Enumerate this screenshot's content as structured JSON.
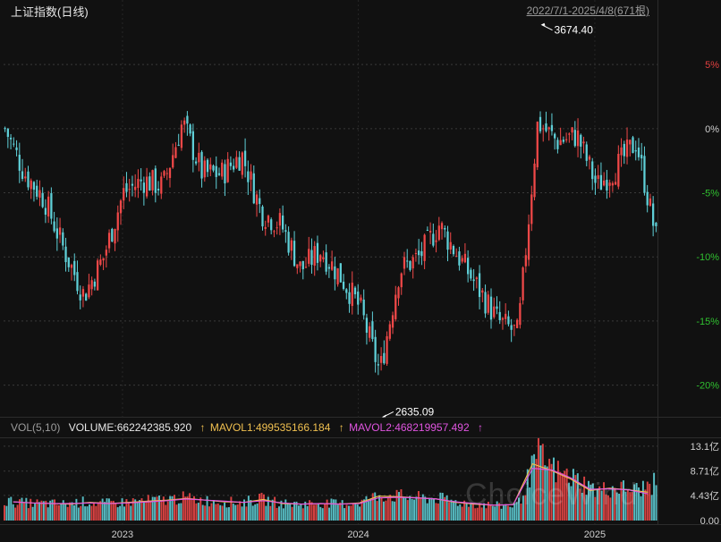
{
  "header": {
    "title": "上证指数(日线)",
    "range": "2022/7/1-2025/4/8(671根)"
  },
  "volume_header": {
    "indicator": "VOL(5,10)",
    "volume": "VOLUME:662242385.920",
    "mavol1": "MAVOL1:499535166.184",
    "mavol2": "MAVOL2:468219957.492",
    "arrow": "↑",
    "colors": {
      "volume": "#e8e8e8",
      "mavol1": "#f0c050",
      "mavol2": "#e055e0"
    }
  },
  "watermark": "ChoiceWind",
  "colors": {
    "background": "#111111",
    "up": "#f04848",
    "down": "#5fd0d8",
    "grid": "#3a3a3a",
    "axis_text": "#cfcfcf",
    "pos_pct": "#e04040",
    "neg_pct": "#30c030"
  },
  "chart_data": [
    {
      "type": "line",
      "subtype": "candlestick",
      "x_axis": {
        "labels": [
          "2023",
          "2024",
          "2025"
        ]
      },
      "y_axis": {
        "unit": "percent change",
        "ticks": [
          5,
          0,
          -5,
          -10,
          -15,
          -20
        ],
        "tick_labels": [
          "5%",
          "0%",
          "-5%",
          "-10%",
          "-15%",
          "-20%"
        ],
        "range": [
          -22.4,
          8.5
        ]
      },
      "annotations": [
        {
          "label": "3674.40",
          "type": "high",
          "date": "2024-10-08",
          "pct": 8.1
        },
        {
          "label": "2635.09",
          "type": "low",
          "date": "2024-02-05",
          "pct": -22.5
        }
      ],
      "x": [
        "2022-07",
        "2022-08",
        "2022-09",
        "2022-10",
        "2022-11",
        "2022-12",
        "2023-01",
        "2023-02",
        "2023-03",
        "2023-04",
        "2023-05",
        "2023-06",
        "2023-07",
        "2023-08",
        "2023-09",
        "2023-10",
        "2023-11",
        "2023-12",
        "2024-01",
        "2024-02",
        "2024-03",
        "2024-04",
        "2024-05",
        "2024-06",
        "2024-07",
        "2024-08",
        "2024-09",
        "2024-10",
        "2024-11",
        "2024-12",
        "2025-01",
        "2025-02",
        "2025-03",
        "2025-04"
      ],
      "series": [
        {
          "values": [
            0.0,
            -3.5,
            -5.5,
            -9.5,
            -13.0,
            -10.0,
            -5.0,
            -4.0,
            -4.5,
            0.5,
            -3.5,
            -3.5,
            -2.0,
            -6.5,
            -7.5,
            -11.0,
            -9.5,
            -11.5,
            -14.0,
            -19.0,
            -11.0,
            -10.0,
            -7.5,
            -10.0,
            -12.5,
            -15.0,
            -16.0,
            0.5,
            -1.0,
            -0.5,
            -4.5,
            -3.0,
            -1.0,
            -8.5
          ]
        }
      ]
    },
    {
      "type": "bar",
      "title": "VOL(5,10)",
      "y_axis": {
        "unit": "亿",
        "tick_labels": [
          "13.1亿",
          "8.71亿",
          "4.43亿",
          "0.00"
        ],
        "ticks": [
          13.1,
          8.71,
          4.43,
          0
        ],
        "range": [
          0,
          14.5
        ]
      },
      "x": [
        "2022-07",
        "2022-08",
        "2022-09",
        "2022-10",
        "2022-11",
        "2022-12",
        "2023-01",
        "2023-02",
        "2023-03",
        "2023-04",
        "2023-05",
        "2023-06",
        "2023-07",
        "2023-08",
        "2023-09",
        "2023-10",
        "2023-11",
        "2023-12",
        "2024-01",
        "2024-02",
        "2024-03",
        "2024-04",
        "2024-05",
        "2024-06",
        "2024-07",
        "2024-08",
        "2024-09",
        "2024-10",
        "2024-11",
        "2024-12",
        "2025-01",
        "2025-02",
        "2025-03",
        "2025-04"
      ],
      "series": [
        {
          "name": "VOLUME",
          "values": [
            3.4,
            3.1,
            3.0,
            2.9,
            3.3,
            3.0,
            3.2,
            3.5,
            3.6,
            4.0,
            3.6,
            3.3,
            3.2,
            3.8,
            3.0,
            2.9,
            3.1,
            2.9,
            3.2,
            4.5,
            4.3,
            4.0,
            3.9,
            3.2,
            2.9,
            2.6,
            2.8,
            11.5,
            8.5,
            7.2,
            5.2,
            5.8,
            5.4,
            6.6
          ]
        },
        {
          "name": "MAVOL1",
          "values": [
            3.3,
            3.1,
            3.0,
            2.9,
            3.2,
            3.0,
            3.2,
            3.4,
            3.6,
            3.9,
            3.6,
            3.3,
            3.2,
            3.7,
            3.0,
            2.9,
            3.0,
            2.9,
            3.1,
            4.3,
            4.2,
            4.0,
            3.8,
            3.2,
            2.9,
            2.7,
            2.8,
            10.0,
            8.8,
            7.3,
            5.3,
            5.7,
            5.4,
            5.0
          ]
        },
        {
          "name": "MAVOL2",
          "values": [
            3.3,
            3.1,
            3.0,
            3.0,
            3.1,
            3.0,
            3.1,
            3.3,
            3.5,
            3.8,
            3.6,
            3.4,
            3.2,
            3.5,
            3.1,
            2.9,
            3.0,
            2.9,
            3.0,
            4.0,
            4.1,
            4.0,
            3.8,
            3.3,
            3.0,
            2.7,
            2.8,
            9.2,
            8.9,
            7.5,
            5.5,
            5.6,
            5.4,
            4.7
          ]
        }
      ]
    }
  ]
}
